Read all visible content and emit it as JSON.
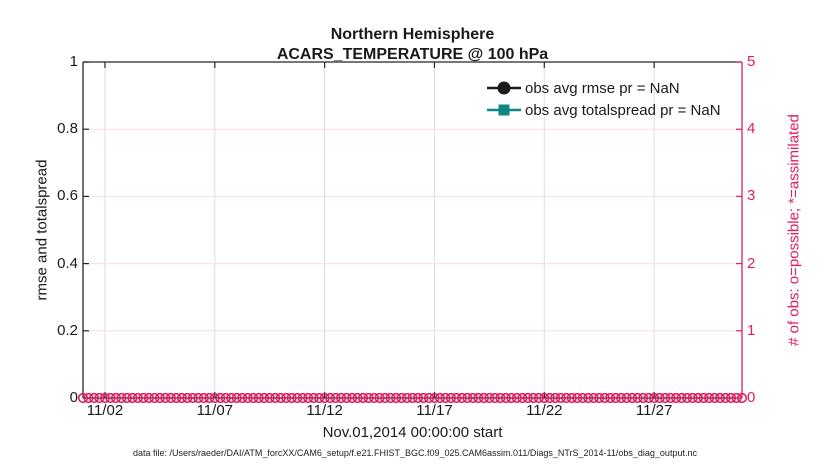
{
  "chart_data": {
    "type": "line",
    "title": "Northern Hemisphere",
    "subtitle": "ACARS_TEMPERATURE @ 100 hPa",
    "xlabel": "Nov.01,2014 00:00:00 start",
    "ylabel_left": "rmse and totalspread",
    "ylabel_right": "# of obs: o=possible; *=assimilated",
    "x_range_days": [
      0,
      30
    ],
    "x_tick_days": [
      1,
      6,
      11,
      16,
      21,
      26
    ],
    "x_tick_labels": [
      "11/02",
      "11/07",
      "11/12",
      "11/17",
      "11/22",
      "11/27"
    ],
    "ylim_left": [
      0,
      1
    ],
    "ytick_values_left": [
      0,
      0.2,
      0.4,
      0.6,
      0.8,
      1
    ],
    "ytick_labels_left": [
      "0",
      "0.2",
      "0.4",
      "0.6",
      "0.8",
      "1"
    ],
    "ylim_right": [
      0,
      5
    ],
    "ytick_values_right": [
      0,
      1,
      2,
      3,
      4,
      5
    ],
    "ytick_labels_right": [
      "0",
      "1",
      "2",
      "3",
      "4",
      "5"
    ],
    "grid": true,
    "legend_position": "top-right-inside, no box",
    "legend": [
      {
        "label": "obs avg rmse pr = NaN",
        "color": "#1a1a1a",
        "marker": "circle"
      },
      {
        "label": "obs avg totalspread pr = NaN",
        "color": "#0f8782",
        "marker": "square"
      }
    ],
    "series": [
      {
        "name": "obs avg rmse pr = NaN",
        "axis": "left",
        "values": "NaN",
        "note_visible": "no line drawn"
      },
      {
        "name": "obs avg totalspread pr = NaN",
        "axis": "left",
        "values": "NaN",
        "note_visible": "no line drawn"
      },
      {
        "name": "# of obs possible",
        "axis": "right",
        "marker": "o",
        "start_day": 0,
        "end_day": 30,
        "step_days": 0.25,
        "constant_value": 0
      }
    ]
  },
  "caption": "data file: /Users/raeder/DAI/ATM_forcXX/CAM6_setup/f.e21.FHIST_BGC.f09_025.CAM6assim.011/Diags_NTrS_2014-11/obs_diag_output.nc",
  "colors": {
    "accent_pink": "#df1e62",
    "teal": "#0f8782",
    "axis_dark": "#262626",
    "tick_text": "#1a1a1a",
    "grid_vertical": "#dcdcdc",
    "grid_horizontal": "#f8dce8",
    "background": "#ffffff"
  }
}
